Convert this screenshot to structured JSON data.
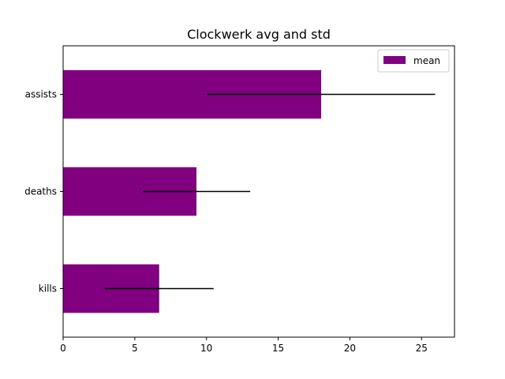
{
  "chart_data": {
    "type": "bar",
    "orientation": "horizontal",
    "title": "Clockwerk avg and std",
    "xlabel": "",
    "ylabel": "",
    "categories": [
      "kills",
      "deaths",
      "assists"
    ],
    "series": [
      {
        "name": "mean",
        "values": [
          6.7,
          9.3,
          18.0
        ],
        "std": [
          3.8,
          3.75,
          7.95
        ],
        "color": "#800080"
      }
    ],
    "xlim": [
      0,
      27.3
    ],
    "xticks": [
      0,
      5,
      10,
      15,
      20,
      25
    ],
    "xtick_labels": [
      "0",
      "5",
      "10",
      "15",
      "20",
      "25"
    ],
    "grid": false,
    "legend_position": "top-right",
    "errorbar_color": "#000000"
  }
}
